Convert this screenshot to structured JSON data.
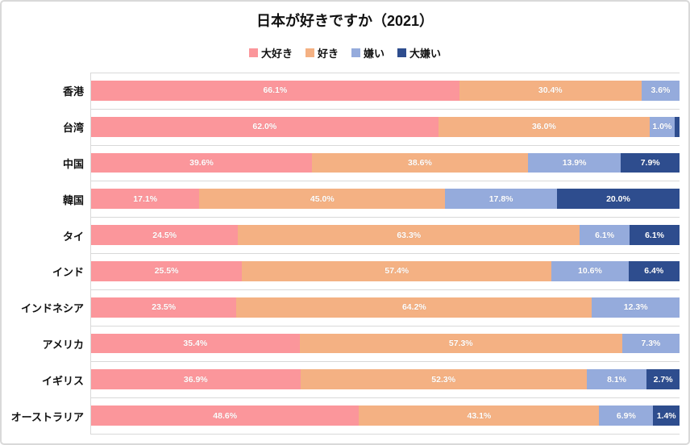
{
  "title": "日本が好きですか（2021）",
  "legend": [
    {
      "label": "大好き",
      "color": "#FB969B"
    },
    {
      "label": "好き",
      "color": "#F4B183"
    },
    {
      "label": "嫌い",
      "color": "#95ABDC"
    },
    {
      "label": "大嫌い",
      "color": "#2E4D8E"
    }
  ],
  "colors": {
    "love": "#FB969B",
    "like": "#F4B183",
    "dislike": "#95ABDC",
    "hate": "#2E4D8E",
    "gridline": "#d9d9d9",
    "data_label": "#ffffff",
    "text": "#111111"
  },
  "chart_data": {
    "type": "bar",
    "orientation": "horizontal",
    "stacked": true,
    "unit": "%",
    "title": "日本が好きですか（2021）",
    "legend_position": "top",
    "grid": "row-separators",
    "xlim": [
      0,
      100
    ],
    "categories": [
      "香港",
      "台湾",
      "中国",
      "韓国",
      "タイ",
      "インド",
      "インドネシア",
      "アメリカ",
      "イギリス",
      "オーストラリア"
    ],
    "series": [
      {
        "name": "大好き",
        "color": "#FB969B",
        "values": [
          66.1,
          62.0,
          39.6,
          17.1,
          24.5,
          25.5,
          23.5,
          35.4,
          36.9,
          48.6
        ]
      },
      {
        "name": "好き",
        "color": "#F4B183",
        "values": [
          30.4,
          36.0,
          38.6,
          45.0,
          63.3,
          57.4,
          64.2,
          57.3,
          52.3,
          43.1
        ]
      },
      {
        "name": "嫌い",
        "color": "#95ABDC",
        "values": [
          3.6,
          1.0,
          13.9,
          17.8,
          6.1,
          10.6,
          12.3,
          7.3,
          8.1,
          6.9
        ]
      },
      {
        "name": "大嫌い",
        "color": "#2E4D8E",
        "values": [
          0,
          1.0,
          7.9,
          20.0,
          6.1,
          6.4,
          0,
          0,
          2.7,
          1.4
        ]
      }
    ],
    "data_label_matrix": [
      [
        "66.1%",
        "30.4%",
        "3.6%",
        ""
      ],
      [
        "62.0%",
        "36.0%",
        "1.0%",
        ""
      ],
      [
        "39.6%",
        "38.6%",
        "13.9%",
        "7.9%"
      ],
      [
        "17.1%",
        "45.0%",
        "17.8%",
        "20.0%"
      ],
      [
        "24.5%",
        "63.3%",
        "6.1%",
        "6.1%"
      ],
      [
        "25.5%",
        "57.4%",
        "10.6%",
        "6.4%"
      ],
      [
        "23.5%",
        "64.2%",
        "12.3%",
        ""
      ],
      [
        "35.4%",
        "57.3%",
        "7.3%",
        ""
      ],
      [
        "36.9%",
        "52.3%",
        "8.1%",
        "2.7%"
      ],
      [
        "48.6%",
        "43.1%",
        "6.9%",
        "1.4%"
      ]
    ]
  }
}
